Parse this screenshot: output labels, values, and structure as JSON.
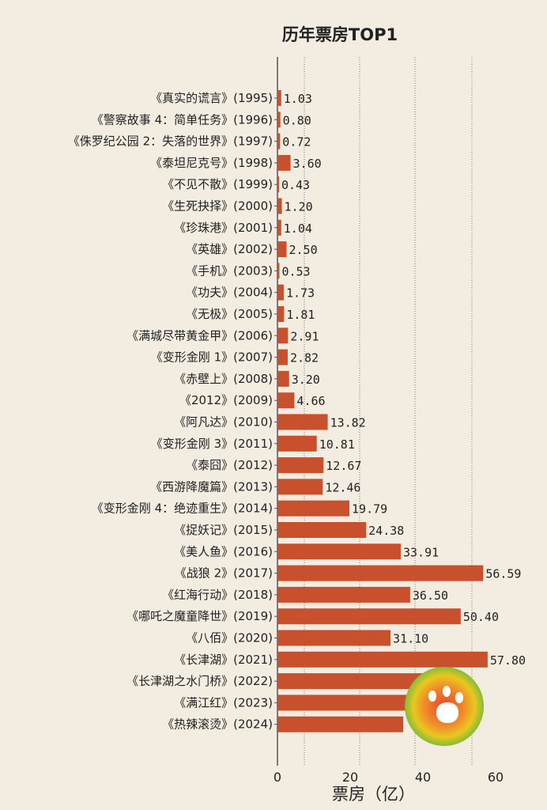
{
  "chart_data": {
    "type": "bar",
    "orientation": "horizontal",
    "title": "历年票房TOP1",
    "xlabel": "票房（亿）",
    "ylabel": "",
    "xlim": [
      0,
      65
    ],
    "xticks": [
      0,
      20,
      40,
      60
    ],
    "grid": "vertical dotted",
    "categories": [
      "《真实的谎言》(1995)",
      "《警察故事 4：简单任务》(1996)",
      "《侏罗纪公园 2：失落的世界》(1997)",
      "《泰坦尼克号》(1998)",
      "《不见不散》(1999)",
      "《生死抉择》(2000)",
      "《珍珠港》(2001)",
      "《英雄》(2002)",
      "《手机》(2003)",
      "《功夫》(2004)",
      "《无极》(2005)",
      "《满城尽带黄金甲》(2006)",
      "《变形金刚 1》(2007)",
      "《赤壁上》(2008)",
      "《2012》(2009)",
      "《阿凡达》(2010)",
      "《变形金刚 3》(2011)",
      "《泰囧》(2012)",
      "《西游降魔篇》(2013)",
      "《变形金刚 4：绝迹重生》(2014)",
      "《捉妖记》(2015)",
      "《美人鱼》(2016)",
      "《战狼 2》(2017)",
      "《红海行动》(2018)",
      "《哪吒之魔童降世》(2019)",
      "《八佰》(2020)",
      "《长津湖》(2021)",
      "《长津湖之水门桥》(2022)",
      "《满江红》(2023)",
      "《热辣滚烫》(2024)"
    ],
    "values": [
      1.03,
      0.8,
      0.72,
      3.6,
      0.43,
      1.2,
      1.04,
      2.5,
      0.53,
      1.73,
      1.81,
      2.91,
      2.82,
      3.2,
      4.66,
      13.82,
      10.81,
      12.67,
      12.46,
      19.79,
      24.38,
      33.91,
      56.59,
      36.5,
      50.4,
      31.1,
      57.8,
      40.67,
      45.46,
      34.6
    ],
    "value_labels": [
      "1.03",
      "0.80",
      "0.72",
      "3.60",
      "0.43",
      "1.20",
      "1.04",
      "2.50",
      "0.53",
      "1.73",
      "1.81",
      "2.91",
      "2.82",
      "3.20",
      "4.66",
      "13.82",
      "10.81",
      "12.67",
      "12.46",
      "19.79",
      "24.38",
      "33.91",
      "56.59",
      "36.50",
      "50.40",
      "31.10",
      "57.80",
      "",
      "",
      ""
    ],
    "bar_color": "#c9502c"
  }
}
